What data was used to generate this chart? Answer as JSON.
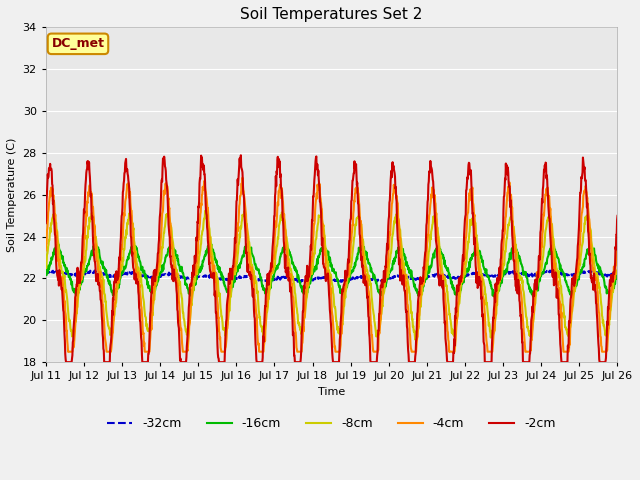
{
  "title": "Soil Temperatures Set 2",
  "xlabel": "Time",
  "ylabel": "Soil Temperature (C)",
  "ylim": [
    18,
    34
  ],
  "background_color": "#f0f0f0",
  "plot_bg_color": "#e8e8e8",
  "annotation_text": "DC_met",
  "annotation_bg": "#ffff99",
  "annotation_border": "#cc8800",
  "series": [
    {
      "label": "-32cm",
      "color": "#0000cc",
      "lw": 1.5,
      "ls": "--"
    },
    {
      "label": "-16cm",
      "color": "#00bb00",
      "lw": 1.5,
      "ls": "-"
    },
    {
      "label": "-8cm",
      "color": "#cccc00",
      "lw": 1.5,
      "ls": "-"
    },
    {
      "label": "-4cm",
      "color": "#ff8800",
      "lw": 1.5,
      "ls": "-"
    },
    {
      "label": "-2cm",
      "color": "#cc0000",
      "lw": 1.5,
      "ls": "-"
    }
  ],
  "x_tick_labels": [
    "Jul 11",
    "Jul 12",
    "Jul 13",
    "Jul 14",
    "Jul 15",
    "Jul 16",
    "Jul 17",
    "Jul 18",
    "Jul 19",
    "Jul 20",
    "Jul 21",
    "Jul 22",
    "Jul 23",
    "Jul 24",
    "Jul 25",
    "Jul 26"
  ],
  "yticks": [
    18,
    20,
    22,
    24,
    26,
    28,
    30,
    32,
    34
  ],
  "grid_color": "#ffffff",
  "title_fontsize": 11,
  "tick_fontsize": 8,
  "legend_fontsize": 9
}
